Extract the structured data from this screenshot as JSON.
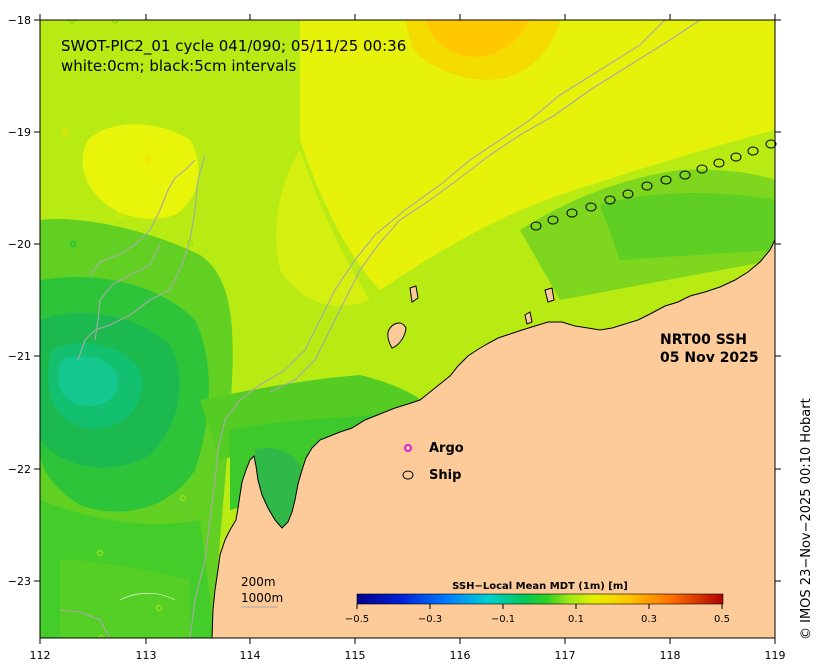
{
  "header": {
    "line1": "SWOT-PIC2_01 cycle 041/090; 05/11/25 00:36",
    "line2": "white:0cm; black:5cm intervals"
  },
  "product": {
    "line1": "NRT00 SSH",
    "line2": "05 Nov 2025"
  },
  "legend": {
    "argo_label": "Argo",
    "ship_label": "Ship",
    "argo_color": "#e020e0",
    "ship_color": "#000000"
  },
  "depth_legend": {
    "line1": "200m",
    "line2": "1000m"
  },
  "colorbar": {
    "title": "SSH−Local Mean MDT (1m) [m]",
    "ticks": [
      "−0.5",
      "−0.3",
      "−0.1",
      "0.1",
      "0.3",
      "0.5"
    ],
    "range": [
      -0.5,
      0.5
    ]
  },
  "axes": {
    "x_ticks": [
      "112",
      "113",
      "114",
      "115",
      "116",
      "117",
      "118",
      "119"
    ],
    "y_ticks": [
      "−18",
      "−19",
      "−20",
      "−21",
      "−22",
      "−23"
    ]
  },
  "credit": "© IMOS 23−Nov−2025 00:10 Hobart",
  "colors": {
    "land": "#fccb99",
    "ocean_base": "#b5ec14",
    "isobath": "#a8a8a8"
  }
}
